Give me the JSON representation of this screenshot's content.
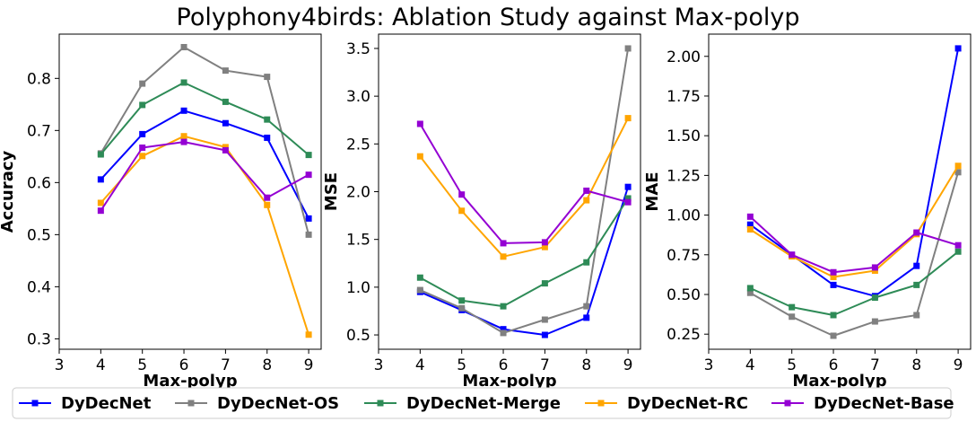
{
  "title": "Polyphony4birds: Ablation Study against Max-polyp",
  "legend": [
    {
      "name": "DyDecNet",
      "color": "#0000ff"
    },
    {
      "name": "DyDecNet-OS",
      "color": "#808080"
    },
    {
      "name": "DyDecNet-Merge",
      "color": "#2e8b57"
    },
    {
      "name": "DyDecNet-RC",
      "color": "#ffa500"
    },
    {
      "name": "DyDecNet-Base",
      "color": "#9400d3"
    }
  ],
  "chart_data": [
    {
      "type": "line",
      "xlabel": "Max-polyp",
      "ylabel": "Accuracy",
      "x": [
        4,
        5,
        6,
        7,
        8,
        9
      ],
      "xlim": [
        3,
        9.3
      ],
      "ylim": [
        0.28,
        0.885
      ],
      "xticks": [
        "3",
        "4",
        "5",
        "6",
        "7",
        "8",
        "9"
      ],
      "yticks": [
        "0.3",
        "0.4",
        "0.5",
        "0.6",
        "0.7",
        "0.8"
      ],
      "series": [
        {
          "name": "DyDecNet",
          "values": [
            0.606,
            0.693,
            0.738,
            0.714,
            0.686,
            0.531
          ]
        },
        {
          "name": "DyDecNet-OS",
          "values": [
            0.656,
            0.79,
            0.86,
            0.815,
            0.803,
            0.5
          ]
        },
        {
          "name": "DyDecNet-Merge",
          "values": [
            0.654,
            0.749,
            0.792,
            0.755,
            0.721,
            0.653
          ]
        },
        {
          "name": "DyDecNet-RC",
          "values": [
            0.561,
            0.651,
            0.689,
            0.668,
            0.557,
            0.308
          ]
        },
        {
          "name": "DyDecNet-Base",
          "values": [
            0.546,
            0.667,
            0.678,
            0.662,
            0.571,
            0.615
          ]
        }
      ]
    },
    {
      "type": "line",
      "xlabel": "Max-polyp",
      "ylabel": "MSE",
      "x": [
        4,
        5,
        6,
        7,
        8,
        9
      ],
      "xlim": [
        3,
        9.3
      ],
      "ylim": [
        0.35,
        3.65
      ],
      "xticks": [
        "3",
        "4",
        "5",
        "6",
        "7",
        "8",
        "9"
      ],
      "yticks": [
        "0.5",
        "1.0",
        "1.5",
        "2.0",
        "2.5",
        "3.0",
        "3.5"
      ],
      "series": [
        {
          "name": "DyDecNet",
          "values": [
            0.95,
            0.76,
            0.56,
            0.5,
            0.68,
            2.05
          ]
        },
        {
          "name": "DyDecNet-OS",
          "values": [
            0.97,
            0.78,
            0.52,
            0.66,
            0.8,
            3.5
          ]
        },
        {
          "name": "DyDecNet-Merge",
          "values": [
            1.1,
            0.86,
            0.8,
            1.04,
            1.26,
            1.93
          ]
        },
        {
          "name": "DyDecNet-RC",
          "values": [
            2.37,
            1.8,
            1.32,
            1.42,
            1.91,
            2.77
          ]
        },
        {
          "name": "DyDecNet-Base",
          "values": [
            2.71,
            1.97,
            1.46,
            1.47,
            2.01,
            1.89
          ]
        }
      ]
    },
    {
      "type": "line",
      "xlabel": "Max-polyp",
      "ylabel": "MAE",
      "x": [
        4,
        5,
        6,
        7,
        8,
        9
      ],
      "xlim": [
        3,
        9.3
      ],
      "ylim": [
        0.155,
        2.14
      ],
      "xticks": [
        "3",
        "4",
        "5",
        "6",
        "7",
        "8",
        "9"
      ],
      "yticks": [
        "0.25",
        "0.50",
        "0.75",
        "1.00",
        "1.25",
        "1.50",
        "1.75",
        "2.00"
      ],
      "series": [
        {
          "name": "DyDecNet",
          "values": [
            0.94,
            0.75,
            0.56,
            0.49,
            0.68,
            2.05
          ]
        },
        {
          "name": "DyDecNet-OS",
          "values": [
            0.51,
            0.36,
            0.24,
            0.33,
            0.37,
            1.27
          ]
        },
        {
          "name": "DyDecNet-Merge",
          "values": [
            0.54,
            0.42,
            0.37,
            0.48,
            0.56,
            0.77
          ]
        },
        {
          "name": "DyDecNet-RC",
          "values": [
            0.91,
            0.74,
            0.61,
            0.65,
            0.88,
            1.31
          ]
        },
        {
          "name": "DyDecNet-Base",
          "values": [
            0.99,
            0.75,
            0.64,
            0.67,
            0.89,
            0.81
          ]
        }
      ]
    }
  ]
}
